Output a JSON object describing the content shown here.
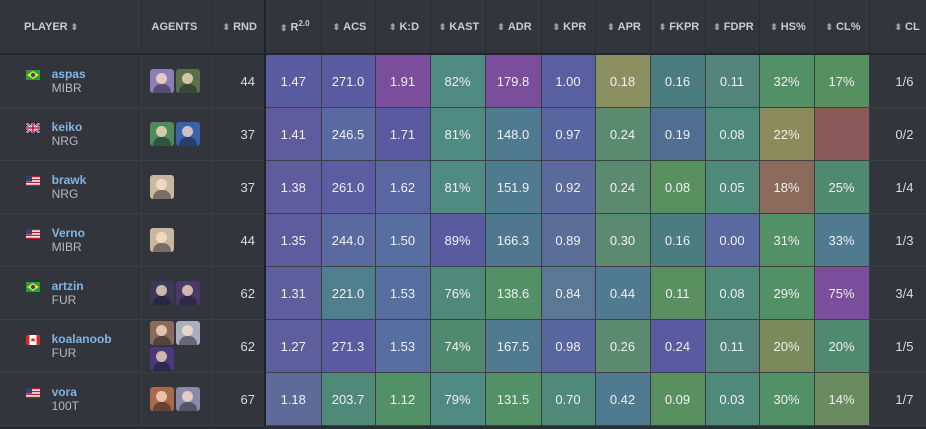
{
  "header": {
    "player": "PLAYER",
    "agents": "AGENTS",
    "rnd": "RND",
    "rating": "R",
    "rating_sup": "2.0",
    "acs": "ACS",
    "kd": "K:D",
    "kast": "KAST",
    "adr": "ADR",
    "kpr": "KPR",
    "apr": "APR",
    "fkpr": "FKPR",
    "fdpr": "FDPR",
    "hs": "HS%",
    "clp": "CL%",
    "cl": "CL"
  },
  "icons": {
    "sort": "sort-arrows-icon"
  },
  "rows": [
    {
      "name": "aspas",
      "team": "MIBR",
      "flag": "br",
      "agents": [
        "#8a7fb8",
        "#5a6f4a"
      ],
      "rnd": "44",
      "rating": "1.47",
      "acs": "271.0",
      "kd": "1.91",
      "kast": "82%",
      "adr": "179.8",
      "kpr": "1.00",
      "apr": "0.18",
      "fkpr": "0.16",
      "fdpr": "0.11",
      "hs": "32%",
      "clp": "17%",
      "cl": "1/6",
      "colors": [
        "#5a5aa0",
        "#5a5aa0",
        "#7a4e9a",
        "#4f8b82",
        "#7a4e9a",
        "#5860a2",
        "#8a9060",
        "#4a7c80",
        "#52847a",
        "#529066",
        "#569060"
      ]
    },
    {
      "name": "keiko",
      "team": "NRG",
      "flag": "gb",
      "agents": [
        "#4e8a5a",
        "#3a62a8"
      ],
      "rnd": "37",
      "rating": "1.41",
      "acs": "246.5",
      "kd": "1.71",
      "kast": "81%",
      "adr": "148.0",
      "kpr": "0.97",
      "apr": "0.24",
      "fkpr": "0.19",
      "fdpr": "0.08",
      "hs": "22%",
      "clp": "",
      "cl": "0/2",
      "colors": [
        "#5e5c9c",
        "#5a6aa0",
        "#5a5aa0",
        "#4f8b82",
        "#4f7a90",
        "#5866a0",
        "#5a8a70",
        "#4f6e90",
        "#4f8a78",
        "#8a8a5a",
        "#8a5a5a"
      ]
    },
    {
      "name": "brawk",
      "team": "NRG",
      "flag": "us",
      "agents": [
        "#c8b8a0"
      ],
      "rnd": "37",
      "rating": "1.38",
      "acs": "261.0",
      "kd": "1.62",
      "kast": "81%",
      "adr": "151.9",
      "kpr": "0.92",
      "apr": "0.24",
      "fkpr": "0.08",
      "fdpr": "0.05",
      "hs": "18%",
      "clp": "25%",
      "cl": "1/4",
      "colors": [
        "#5e5c9c",
        "#5a5ea0",
        "#5a66a0",
        "#4f8b82",
        "#4f7a90",
        "#5a6a9a",
        "#5a8a70",
        "#5a9060",
        "#4f8a78",
        "#8a6a5a",
        "#4f8a70"
      ]
    },
    {
      "name": "Verno",
      "team": "MIBR",
      "flag": "us",
      "agents": [
        "#c8b8a0"
      ],
      "rnd": "44",
      "rating": "1.35",
      "acs": "244.0",
      "kd": "1.50",
      "kast": "89%",
      "adr": "166.3",
      "kpr": "0.89",
      "apr": "0.30",
      "fkpr": "0.16",
      "fdpr": "0.00",
      "hs": "31%",
      "clp": "33%",
      "cl": "1/3",
      "colors": [
        "#5e5c9c",
        "#5a6aa0",
        "#566ea0",
        "#5a5aa0",
        "#4f7890",
        "#5a6e98",
        "#5a8a70",
        "#4a7c80",
        "#5a6aa0",
        "#529066",
        "#4f7a90"
      ]
    },
    {
      "name": "artzin",
      "team": "FUR",
      "flag": "br",
      "agents": [
        "#3a3a58",
        "#4a3a68"
      ],
      "rnd": "62",
      "rating": "1.31",
      "acs": "221.0",
      "kd": "1.53",
      "kast": "76%",
      "adr": "138.6",
      "kpr": "0.84",
      "apr": "0.44",
      "fkpr": "0.11",
      "fdpr": "0.08",
      "hs": "29%",
      "clp": "75%",
      "cl": "3/4",
      "colors": [
        "#5e5e9c",
        "#4f7e8c",
        "#566ea0",
        "#4f8a78",
        "#529066",
        "#5a7896",
        "#4f7a90",
        "#5a9060",
        "#4f8a78",
        "#529066",
        "#7a4e9a"
      ]
    },
    {
      "name": "koalanoob",
      "team": "FUR",
      "flag": "ca",
      "agents": [
        "#8a6a5a",
        "#a8b0c0",
        "#4a3a78"
      ],
      "rnd": "62",
      "rating": "1.27",
      "acs": "271.3",
      "kd": "1.53",
      "kast": "74%",
      "adr": "167.5",
      "kpr": "0.98",
      "apr": "0.26",
      "fkpr": "0.24",
      "fdpr": "0.11",
      "hs": "20%",
      "clp": "20%",
      "cl": "1/5",
      "colors": [
        "#5e5e9c",
        "#5a5aa0",
        "#566ea0",
        "#4f8a6e",
        "#4f7a90",
        "#5866a0",
        "#5a8a70",
        "#5a5aa0",
        "#52847a",
        "#7a8a5a",
        "#4f8a70"
      ]
    },
    {
      "name": "vora",
      "team": "100T",
      "flag": "us",
      "agents": [
        "#a86a4a",
        "#8a8aa8"
      ],
      "rnd": "67",
      "rating": "1.18",
      "acs": "203.7",
      "kd": "1.12",
      "kast": "79%",
      "adr": "131.5",
      "kpr": "0.70",
      "apr": "0.42",
      "fkpr": "0.09",
      "fdpr": "0.03",
      "hs": "30%",
      "clp": "14%",
      "cl": "1/7",
      "colors": [
        "#5e6a98",
        "#4f8a78",
        "#529066",
        "#4f8b82",
        "#529066",
        "#4f8a78",
        "#4f7a90",
        "#5a9060",
        "#4f8a78",
        "#529066",
        "#6a8a60"
      ]
    }
  ]
}
